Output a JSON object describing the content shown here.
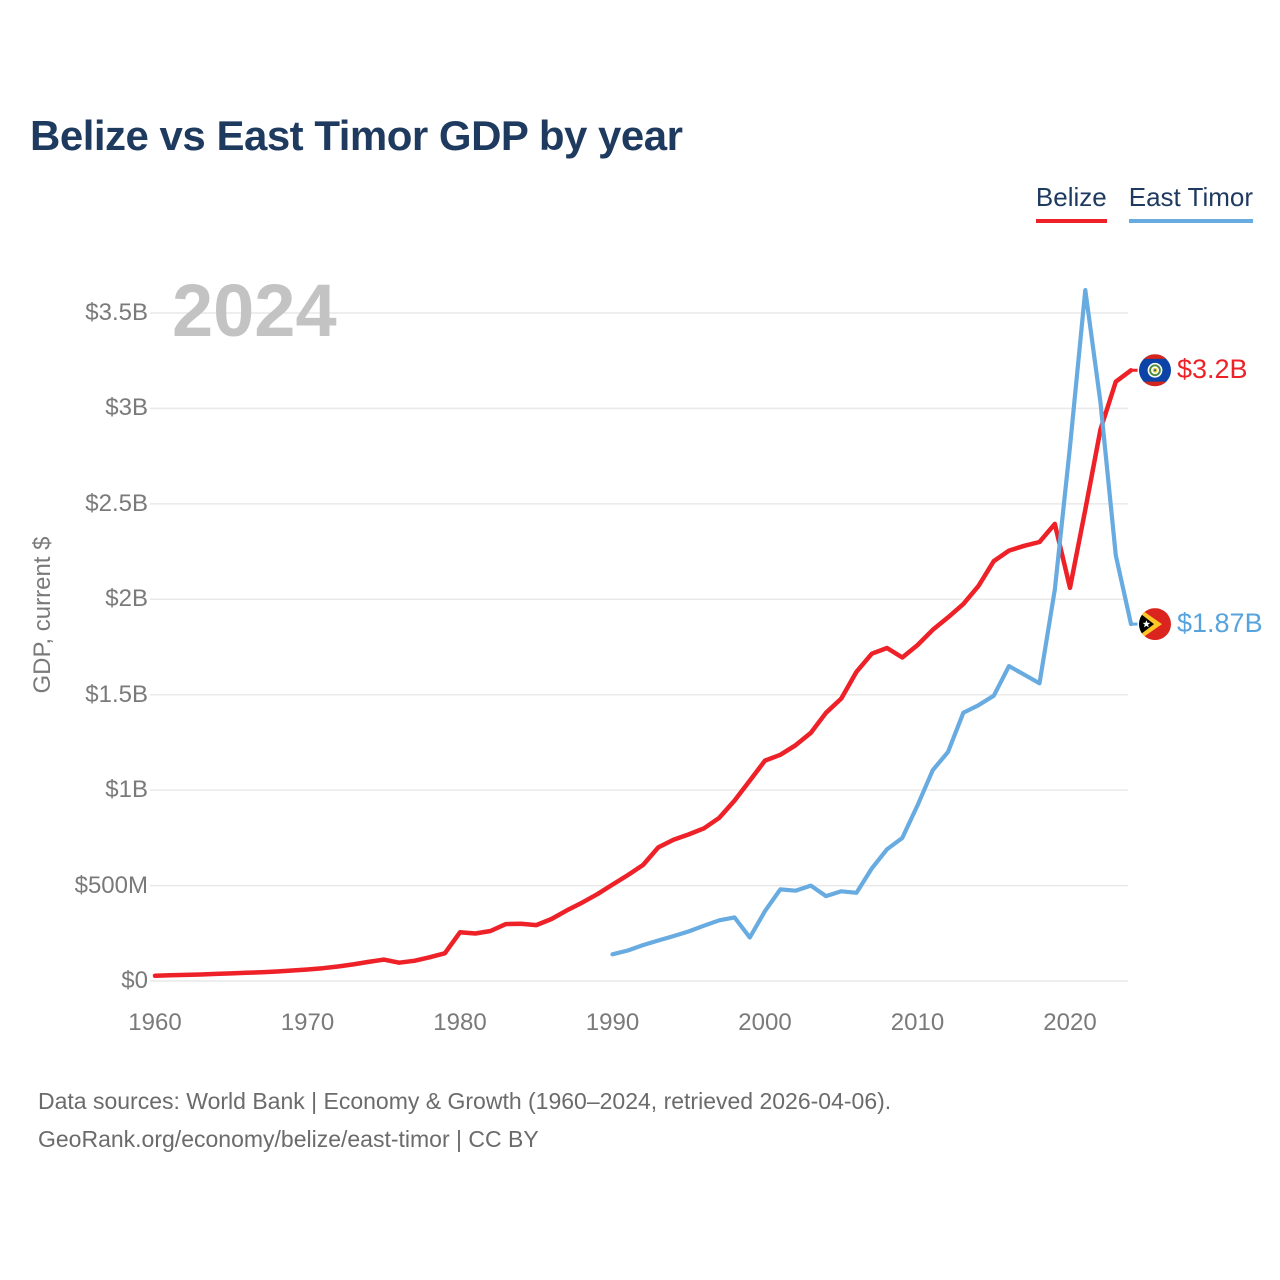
{
  "title": "Belize vs East Timor GDP by year",
  "watermark": "2024",
  "legend": {
    "items": [
      {
        "label": "Belize",
        "color": "#ed2127"
      },
      {
        "label": "East Timor",
        "color": "#68abe0"
      }
    ]
  },
  "y_axis": {
    "label": "GDP, current $",
    "ticks": [
      {
        "value": 0,
        "label": "$0"
      },
      {
        "value": 500,
        "label": "$500M"
      },
      {
        "value": 1000,
        "label": "$1B"
      },
      {
        "value": 1500,
        "label": "$1.5B"
      },
      {
        "value": 2000,
        "label": "$2B"
      },
      {
        "value": 2500,
        "label": "$2.5B"
      },
      {
        "value": 3000,
        "label": "$3B"
      },
      {
        "value": 3500,
        "label": "$3.5B"
      }
    ]
  },
  "x_axis": {
    "ticks": [
      1960,
      1970,
      1980,
      1990,
      2000,
      2010,
      2020
    ]
  },
  "end_labels": [
    {
      "series": "Belize",
      "label": "$3.2B",
      "color": "#ed2127",
      "flag": "belize-flag-icon"
    },
    {
      "series": "East Timor",
      "label": "$1.87B",
      "color": "#57a3dd",
      "flag": "east-timor-flag-icon"
    }
  ],
  "footer": {
    "line1": "Data sources: World Bank | Economy & Growth (1960–2024, retrieved 2026-04-06).",
    "line2": "GeoRank.org/economy/belize/east-timor | CC BY"
  },
  "chart_data": {
    "type": "line",
    "title": "Belize vs East Timor GDP by year",
    "xlabel": "",
    "ylabel": "GDP, current $",
    "units": "USD millions, current $",
    "x_range": [
      1960,
      2024
    ],
    "ylim_usd_m": [
      0,
      3500
    ],
    "grid": "horizontal",
    "legend_position": "top-right",
    "series": [
      {
        "name": "Belize",
        "color": "#ed2127",
        "end_label": "$3.2B",
        "years": [
          1960,
          1961,
          1962,
          1963,
          1964,
          1965,
          1966,
          1967,
          1968,
          1969,
          1970,
          1971,
          1972,
          1973,
          1974,
          1975,
          1976,
          1977,
          1978,
          1979,
          1980,
          1981,
          1982,
          1983,
          1984,
          1985,
          1986,
          1987,
          1988,
          1989,
          1990,
          1991,
          1992,
          1993,
          1994,
          1995,
          1996,
          1997,
          1998,
          1999,
          2000,
          2001,
          2002,
          2003,
          2004,
          2005,
          2006,
          2007,
          2008,
          2009,
          2010,
          2011,
          2012,
          2013,
          2014,
          2015,
          2016,
          2017,
          2018,
          2019,
          2020,
          2021,
          2022,
          2023,
          2024
        ],
        "values_usd_m": [
          28,
          30,
          32,
          34,
          37,
          40,
          43,
          46,
          50,
          55,
          60,
          67,
          76,
          87,
          100,
          112,
          96,
          106,
          124,
          145,
          255,
          249,
          262,
          298,
          300,
          293,
          325,
          370,
          410,
          455,
          505,
          555,
          608,
          700,
          740,
          768,
          800,
          855,
          945,
          1050,
          1155,
          1185,
          1235,
          1300,
          1405,
          1480,
          1620,
          1715,
          1745,
          1695,
          1760,
          1840,
          1905,
          1975,
          2070,
          2200,
          2255,
          2280,
          2300,
          2395,
          2060,
          2470,
          2890,
          3140,
          3200
        ]
      },
      {
        "name": "East Timor",
        "color": "#68abe0",
        "end_label": "$1.87B",
        "years": [
          1990,
          1991,
          1992,
          1993,
          1994,
          1995,
          1996,
          1997,
          1998,
          1999,
          2000,
          2001,
          2002,
          2003,
          2004,
          2005,
          2006,
          2007,
          2008,
          2009,
          2010,
          2011,
          2012,
          2013,
          2014,
          2015,
          2016,
          2017,
          2018,
          2019,
          2020,
          2021,
          2022,
          2023,
          2024
        ],
        "values_usd_m": [
          140,
          160,
          188,
          212,
          235,
          260,
          290,
          318,
          333,
          228,
          366,
          480,
          473,
          500,
          445,
          470,
          462,
          590,
          690,
          750,
          920,
          1105,
          1200,
          1405,
          1445,
          1495,
          1650,
          1605,
          1560,
          2050,
          2800,
          3620,
          3030,
          2230,
          1870
        ]
      }
    ]
  }
}
